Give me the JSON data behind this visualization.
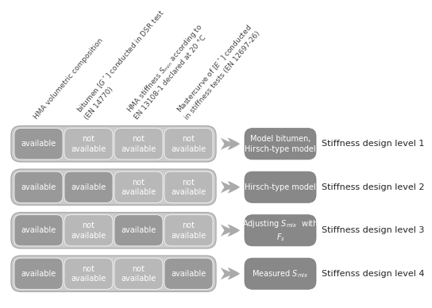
{
  "background_color": "#ffffff",
  "figure_bg": "#f5f5f5",
  "rows": [
    {
      "cells": [
        "available",
        "not\navailable",
        "not\navailable",
        "not\navailable"
      ],
      "cell_colors": [
        "#999999",
        "#b8b8b8",
        "#b8b8b8",
        "#b8b8b8"
      ],
      "output_text": "Model bitumen,\nHirsch-type model",
      "output_color": "#888888",
      "label": "Stiffness design level 1"
    },
    {
      "cells": [
        "available",
        "available",
        "not\navailable",
        "not\navailable"
      ],
      "cell_colors": [
        "#999999",
        "#999999",
        "#b8b8b8",
        "#b8b8b8"
      ],
      "output_text": "Hirsch-type model",
      "output_color": "#888888",
      "label": "Stiffness design level 2"
    },
    {
      "cells": [
        "available",
        "not\navailable",
        "available",
        "not\navailable"
      ],
      "cell_colors": [
        "#999999",
        "#b8b8b8",
        "#999999",
        "#b8b8b8"
      ],
      "output_text_parts": [
        {
          "text": "Adjusting ",
          "style": "normal"
        },
        {
          "text": "S",
          "style": "italic"
        },
        {
          "text": "mix",
          "style": "subscript"
        },
        {
          "text": "  with",
          "style": "normal"
        },
        {
          "text": "\nF",
          "style": "italic"
        },
        {
          "text": "s",
          "style": "subscript"
        }
      ],
      "output_text": "Adjusting $S_{mix}$  with\n$F_s$",
      "output_color": "#888888",
      "label": "Stiffness design level 3"
    },
    {
      "cells": [
        "available",
        "not\navailable",
        "not\navailable",
        "available"
      ],
      "cell_colors": [
        "#999999",
        "#b8b8b8",
        "#b8b8b8",
        "#999999"
      ],
      "output_text": "Measured $S_{mix}$",
      "output_color": "#888888",
      "label": "Stiffenss design level 4"
    }
  ],
  "column_headers": [
    "HMA volumetric composition",
    "bitumen [$G^*$] conducted in DSR test\n(EN 14770)",
    "HMA stiffness $S_{min}$ according to\nEN 13108-1 declared at 20 °C",
    "Mastercurve of [$E^*$] conducted\nin stiffness tests (EN 12697-26)"
  ],
  "arrow_color": "#aaaaaa",
  "label_fontsize": 8.0,
  "cell_fontsize": 7.0,
  "header_fontsize": 6.5,
  "output_fontsize": 7.0,
  "container_color": "#cccccc",
  "container_edge_color": "#aaaaaa"
}
